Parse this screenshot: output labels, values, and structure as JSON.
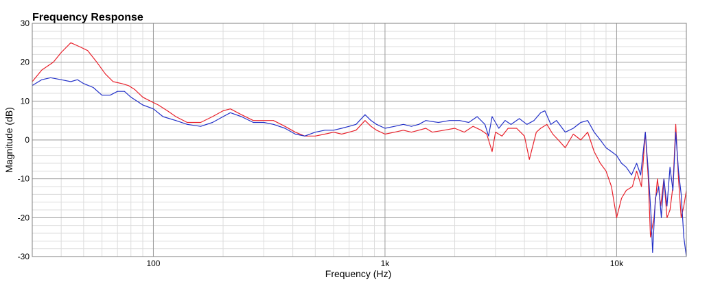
{
  "chart_data": {
    "type": "line",
    "title": "Frequency Response",
    "xlabel": "Frequency (Hz)",
    "ylabel": "Magnitude (dB)",
    "xscale": "log",
    "xlim": [
      30,
      20000
    ],
    "ylim": [
      -30,
      30
    ],
    "grid": true,
    "x_tick_labels": [
      {
        "value": 100,
        "label": "100"
      },
      {
        "value": 1000,
        "label": "1k"
      },
      {
        "value": 10000,
        "label": "10k"
      }
    ],
    "y_tick_labels": [
      {
        "value": 30,
        "label": "30"
      },
      {
        "value": 20,
        "label": "20"
      },
      {
        "value": 10,
        "label": "10"
      },
      {
        "value": 0,
        "label": "0"
      },
      {
        "value": -10,
        "label": "-10"
      },
      {
        "value": -20,
        "label": "-20"
      },
      {
        "value": -30,
        "label": "-30"
      }
    ],
    "series": [
      {
        "color": "#e8202a",
        "points": [
          [
            30,
            15
          ],
          [
            33,
            18
          ],
          [
            37,
            20
          ],
          [
            40,
            22.5
          ],
          [
            44,
            25
          ],
          [
            48,
            24
          ],
          [
            52,
            23
          ],
          [
            57,
            20
          ],
          [
            62,
            17
          ],
          [
            67,
            15
          ],
          [
            73,
            14.5
          ],
          [
            78,
            14
          ],
          [
            83,
            13
          ],
          [
            90,
            11
          ],
          [
            97,
            10
          ],
          [
            105,
            9
          ],
          [
            115,
            7.5
          ],
          [
            125,
            6
          ],
          [
            140,
            4.5
          ],
          [
            160,
            4.5
          ],
          [
            180,
            6
          ],
          [
            200,
            7.5
          ],
          [
            215,
            8
          ],
          [
            240,
            6.5
          ],
          [
            270,
            5
          ],
          [
            300,
            5
          ],
          [
            330,
            5
          ],
          [
            370,
            3.5
          ],
          [
            410,
            2
          ],
          [
            450,
            1
          ],
          [
            500,
            1
          ],
          [
            550,
            1.5
          ],
          [
            600,
            2
          ],
          [
            650,
            1.5
          ],
          [
            700,
            2
          ],
          [
            750,
            2.5
          ],
          [
            820,
            5
          ],
          [
            870,
            3.5
          ],
          [
            920,
            2.5
          ],
          [
            1000,
            1.5
          ],
          [
            1100,
            2
          ],
          [
            1200,
            2.5
          ],
          [
            1300,
            2
          ],
          [
            1400,
            2.5
          ],
          [
            1500,
            3
          ],
          [
            1600,
            2
          ],
          [
            1800,
            2.5
          ],
          [
            2000,
            3
          ],
          [
            2200,
            2
          ],
          [
            2400,
            3.5
          ],
          [
            2600,
            2.5
          ],
          [
            2750,
            1.5
          ],
          [
            2900,
            -3
          ],
          [
            3000,
            2
          ],
          [
            3200,
            1
          ],
          [
            3400,
            3
          ],
          [
            3700,
            3
          ],
          [
            4000,
            1
          ],
          [
            4200,
            -5
          ],
          [
            4500,
            2
          ],
          [
            4700,
            3
          ],
          [
            5000,
            4
          ],
          [
            5300,
            1.5
          ],
          [
            5600,
            0
          ],
          [
            6000,
            -2
          ],
          [
            6500,
            1.5
          ],
          [
            7000,
            0
          ],
          [
            7500,
            2
          ],
          [
            8000,
            -3
          ],
          [
            8500,
            -6
          ],
          [
            9000,
            -8
          ],
          [
            9500,
            -12
          ],
          [
            10000,
            -20
          ],
          [
            10500,
            -15
          ],
          [
            11000,
            -13
          ],
          [
            11700,
            -12
          ],
          [
            12200,
            -8
          ],
          [
            12800,
            -12
          ],
          [
            13300,
            2
          ],
          [
            13700,
            -10
          ],
          [
            14000,
            -25
          ],
          [
            14500,
            -20
          ],
          [
            15000,
            -10
          ],
          [
            15500,
            -17
          ],
          [
            16000,
            -10
          ],
          [
            16500,
            -20
          ],
          [
            17000,
            -18
          ],
          [
            17500,
            -12
          ],
          [
            18000,
            4
          ],
          [
            18500,
            -10
          ],
          [
            19000,
            -20
          ],
          [
            19500,
            -17
          ],
          [
            20000,
            -13
          ]
        ]
      },
      {
        "color": "#2230c8",
        "points": [
          [
            30,
            14
          ],
          [
            33,
            15.5
          ],
          [
            36,
            16
          ],
          [
            40,
            15.5
          ],
          [
            44,
            15
          ],
          [
            47,
            15.5
          ],
          [
            50,
            14.5
          ],
          [
            55,
            13.5
          ],
          [
            60,
            11.5
          ],
          [
            65,
            11.5
          ],
          [
            70,
            12.5
          ],
          [
            75,
            12.5
          ],
          [
            80,
            11
          ],
          [
            90,
            9
          ],
          [
            100,
            8
          ],
          [
            110,
            6
          ],
          [
            125,
            5
          ],
          [
            140,
            4
          ],
          [
            160,
            3.5
          ],
          [
            180,
            4.5
          ],
          [
            200,
            6
          ],
          [
            215,
            7
          ],
          [
            240,
            6
          ],
          [
            270,
            4.5
          ],
          [
            300,
            4.5
          ],
          [
            330,
            4
          ],
          [
            370,
            3
          ],
          [
            410,
            1.5
          ],
          [
            450,
            1
          ],
          [
            500,
            2
          ],
          [
            550,
            2.5
          ],
          [
            600,
            2.5
          ],
          [
            650,
            3
          ],
          [
            700,
            3.5
          ],
          [
            750,
            4
          ],
          [
            820,
            6.5
          ],
          [
            870,
            5
          ],
          [
            920,
            4
          ],
          [
            1000,
            3
          ],
          [
            1100,
            3.5
          ],
          [
            1200,
            4
          ],
          [
            1300,
            3.5
          ],
          [
            1400,
            4
          ],
          [
            1500,
            5
          ],
          [
            1700,
            4.5
          ],
          [
            1900,
            5
          ],
          [
            2100,
            5
          ],
          [
            2300,
            4.5
          ],
          [
            2500,
            6
          ],
          [
            2700,
            4
          ],
          [
            2800,
            1
          ],
          [
            2900,
            6
          ],
          [
            3100,
            3
          ],
          [
            3300,
            5
          ],
          [
            3500,
            4
          ],
          [
            3800,
            5.5
          ],
          [
            4100,
            4
          ],
          [
            4400,
            5
          ],
          [
            4700,
            7
          ],
          [
            4900,
            7.5
          ],
          [
            5200,
            4
          ],
          [
            5500,
            5
          ],
          [
            6000,
            2
          ],
          [
            6500,
            3
          ],
          [
            7000,
            4.5
          ],
          [
            7500,
            5
          ],
          [
            8000,
            2
          ],
          [
            8500,
            0
          ],
          [
            9000,
            -2
          ],
          [
            9500,
            -3
          ],
          [
            10000,
            -4
          ],
          [
            10500,
            -6
          ],
          [
            11000,
            -7
          ],
          [
            11600,
            -9
          ],
          [
            12200,
            -6
          ],
          [
            12700,
            -9
          ],
          [
            13300,
            2
          ],
          [
            13700,
            -8
          ],
          [
            14100,
            -20
          ],
          [
            14300,
            -29
          ],
          [
            14700,
            -15
          ],
          [
            15200,
            -12
          ],
          [
            15600,
            -20
          ],
          [
            16000,
            -10
          ],
          [
            16500,
            -17
          ],
          [
            17000,
            -7
          ],
          [
            17500,
            -13
          ],
          [
            18000,
            2
          ],
          [
            18500,
            -8
          ],
          [
            19000,
            -14
          ],
          [
            19500,
            -25
          ],
          [
            20000,
            -30
          ]
        ]
      }
    ]
  }
}
